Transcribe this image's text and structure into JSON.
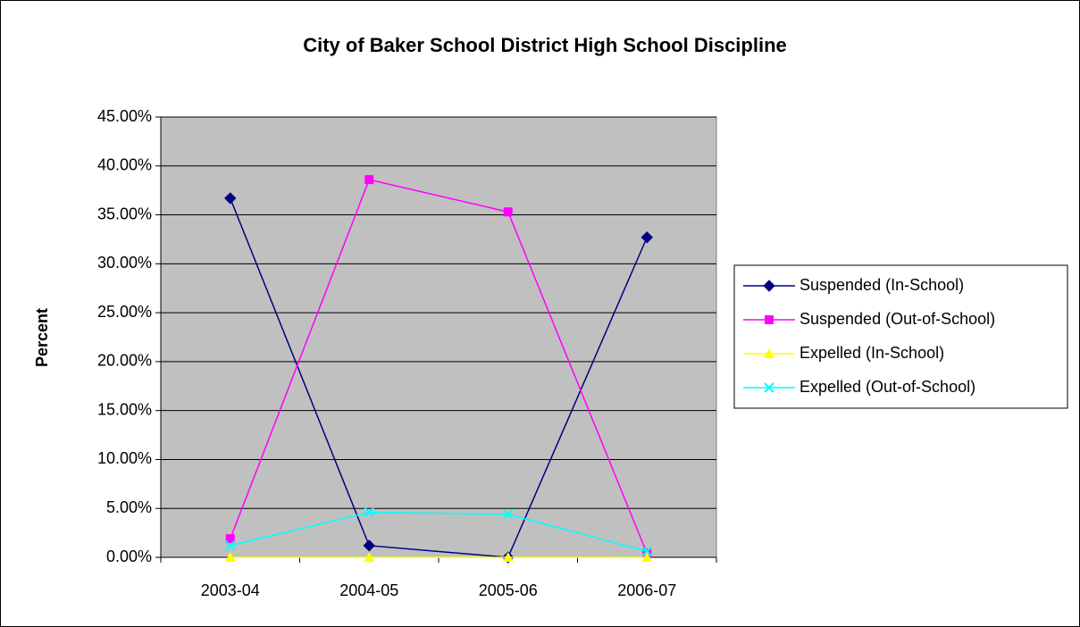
{
  "chart_data": {
    "type": "line",
    "title": "City of Baker School District High School Discipline",
    "y_label": "Percent",
    "categories": [
      "2003-04",
      "2004-05",
      "2005-06",
      "2006-07"
    ],
    "series": [
      {
        "name": "Suspended (In-School)",
        "color": "#000080",
        "marker": "diamond",
        "values": [
          36.7,
          1.2,
          0,
          32.7
        ]
      },
      {
        "name": "Suspended (Out-of-School)",
        "color": "#FF00FF",
        "marker": "square",
        "values": [
          1.9,
          38.6,
          35.3,
          0.4
        ]
      },
      {
        "name": "Expelled (In-School)",
        "color": "#FFFF00",
        "marker": "triangle",
        "values": [
          0,
          0,
          0,
          0
        ]
      },
      {
        "name": "Expelled (Out-of-School)",
        "color": "#00FFFF",
        "marker": "x",
        "values": [
          1.2,
          4.6,
          4.4,
          0.6
        ]
      }
    ],
    "ylim": [
      0,
      45
    ],
    "yticks": [
      {
        "value": 0,
        "label": "0.00%"
      },
      {
        "value": 5,
        "label": "5.00%"
      },
      {
        "value": 10,
        "label": "10.00%"
      },
      {
        "value": 15,
        "label": "15.00%"
      },
      {
        "value": 20,
        "label": "20.00%"
      },
      {
        "value": 25,
        "label": "25.00%"
      },
      {
        "value": 30,
        "label": "30.00%"
      },
      {
        "value": 35,
        "label": "35.00%"
      },
      {
        "value": 40,
        "label": "40.00%"
      },
      {
        "value": 45,
        "label": "45.00%"
      }
    ],
    "grid": true,
    "legend": "right",
    "plot_background": "#C0C0C0"
  }
}
